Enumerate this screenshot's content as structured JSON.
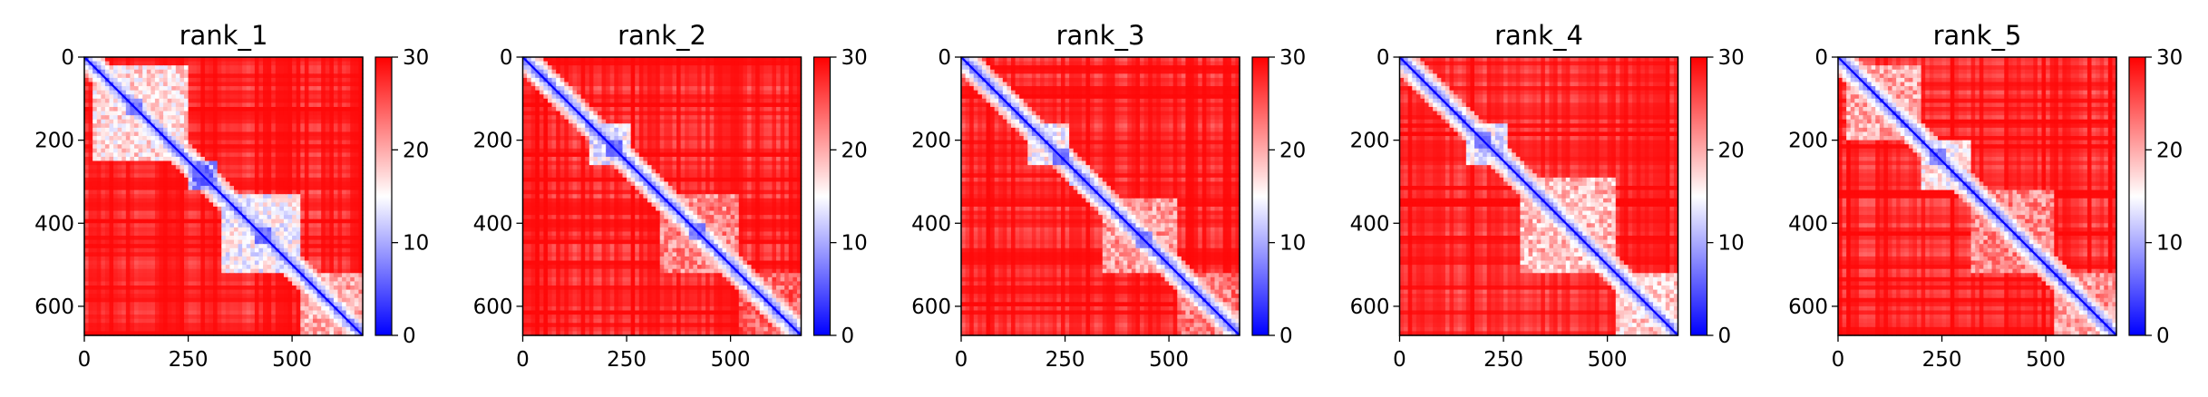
{
  "figure": {
    "background": "#ffffff"
  },
  "colormap": {
    "name": "bwr",
    "low": "#0000ff",
    "mid": "#ffffff",
    "high": "#ff0000"
  },
  "chart_data": [
    {
      "type": "heatmap",
      "title": "rank_1",
      "xlim": [
        0,
        670
      ],
      "ylim": [
        670,
        0
      ],
      "xticks": [
        0,
        250,
        500
      ],
      "yticks": [
        0,
        200,
        400,
        600
      ],
      "colorbar": {
        "range": [
          0,
          30
        ],
        "ticks": [
          0,
          10,
          20,
          30
        ]
      },
      "blocks": [
        {
          "start": 20,
          "end": 250,
          "mean": 17
        },
        {
          "start": 250,
          "end": 320,
          "mean": 10
        },
        {
          "start": 330,
          "end": 520,
          "mean": 15
        },
        {
          "start": 520,
          "end": 670,
          "mean": 20
        }
      ],
      "hotspots": [
        {
          "x": 120,
          "y": 120,
          "value": 6
        },
        {
          "x": 285,
          "y": 285,
          "value": 4
        },
        {
          "x": 430,
          "y": 430,
          "value": 5
        }
      ]
    },
    {
      "type": "heatmap",
      "title": "rank_2",
      "xlim": [
        0,
        670
      ],
      "ylim": [
        670,
        0
      ],
      "xticks": [
        0,
        250,
        500
      ],
      "yticks": [
        0,
        200,
        400,
        600
      ],
      "colorbar": {
        "range": [
          0,
          30
        ],
        "ticks": [
          0,
          10,
          20,
          30
        ]
      },
      "blocks": [
        {
          "start": 160,
          "end": 260,
          "mean": 14
        },
        {
          "start": 260,
          "end": 300,
          "mean": 18
        },
        {
          "start": 330,
          "end": 520,
          "mean": 22
        },
        {
          "start": 520,
          "end": 670,
          "mean": 24
        }
      ],
      "hotspots": [
        {
          "x": 220,
          "y": 220,
          "value": 5
        },
        {
          "x": 420,
          "y": 420,
          "value": 6
        }
      ]
    },
    {
      "type": "heatmap",
      "title": "rank_3",
      "xlim": [
        0,
        670
      ],
      "ylim": [
        670,
        0
      ],
      "xticks": [
        0,
        250,
        500
      ],
      "yticks": [
        0,
        200,
        400,
        600
      ],
      "colorbar": {
        "range": [
          0,
          30
        ],
        "ticks": [
          0,
          10,
          20,
          30
        ]
      },
      "blocks": [
        {
          "start": 160,
          "end": 260,
          "mean": 15
        },
        {
          "start": 260,
          "end": 310,
          "mean": 14
        },
        {
          "start": 340,
          "end": 520,
          "mean": 21
        },
        {
          "start": 520,
          "end": 670,
          "mean": 23
        }
      ],
      "hotspots": [
        {
          "x": 240,
          "y": 240,
          "value": 5
        },
        {
          "x": 440,
          "y": 440,
          "value": 6
        }
      ]
    },
    {
      "type": "heatmap",
      "title": "rank_4",
      "xlim": [
        0,
        670
      ],
      "ylim": [
        670,
        0
      ],
      "xticks": [
        0,
        250,
        500
      ],
      "yticks": [
        0,
        200,
        400,
        600
      ],
      "colorbar": {
        "range": [
          0,
          30
        ],
        "ticks": [
          0,
          10,
          20,
          30
        ]
      },
      "blocks": [
        {
          "start": 160,
          "end": 260,
          "mean": 14
        },
        {
          "start": 290,
          "end": 520,
          "mean": 19
        },
        {
          "start": 520,
          "end": 670,
          "mean": 18
        }
      ],
      "hotspots": [
        {
          "x": 200,
          "y": 200,
          "value": 5
        }
      ]
    },
    {
      "type": "heatmap",
      "title": "rank_5",
      "xlim": [
        0,
        670
      ],
      "ylim": [
        670,
        0
      ],
      "xticks": [
        0,
        250,
        500
      ],
      "yticks": [
        0,
        200,
        400,
        600
      ],
      "colorbar": {
        "range": [
          0,
          30
        ],
        "ticks": [
          0,
          10,
          20,
          30
        ]
      },
      "blocks": [
        {
          "start": 20,
          "end": 200,
          "mean": 20
        },
        {
          "start": 200,
          "end": 320,
          "mean": 16
        },
        {
          "start": 320,
          "end": 520,
          "mean": 22
        },
        {
          "start": 520,
          "end": 670,
          "mean": 21
        }
      ],
      "hotspots": [
        {
          "x": 240,
          "y": 240,
          "value": 6
        }
      ]
    }
  ]
}
